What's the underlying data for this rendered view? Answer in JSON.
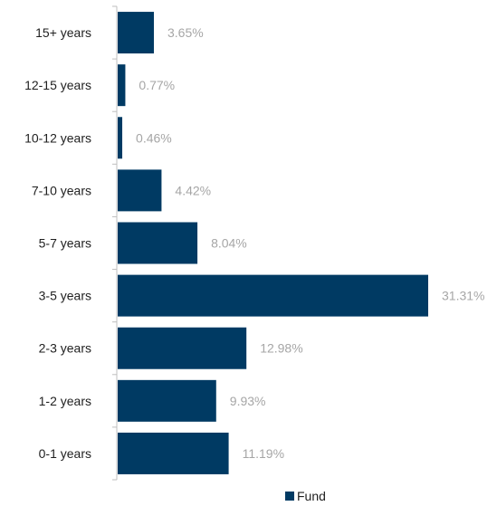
{
  "chart_data": {
    "type": "bar",
    "orientation": "horizontal",
    "categories": [
      "15+ years",
      "12-15 years",
      "10-12 years",
      "7-10 years",
      "5-7 years",
      "3-5 years",
      "2-3 years",
      "1-2 years",
      "0-1 years"
    ],
    "series": [
      {
        "name": "Fund",
        "values": [
          3.65,
          0.77,
          0.46,
          4.42,
          8.04,
          31.31,
          12.98,
          9.93,
          11.19
        ],
        "labels": [
          "3.65%",
          "0.77%",
          "0.46%",
          "4.42%",
          "8.04%",
          "31.31%",
          "12.98%",
          "9.93%",
          "11.19%"
        ],
        "color": "#003a63"
      }
    ],
    "xlim": [
      0,
      31.31
    ],
    "grid": false,
    "legend": "bottom-center",
    "value_label_color": "#a6a6a6",
    "axis_color": "#bfbfbf"
  }
}
